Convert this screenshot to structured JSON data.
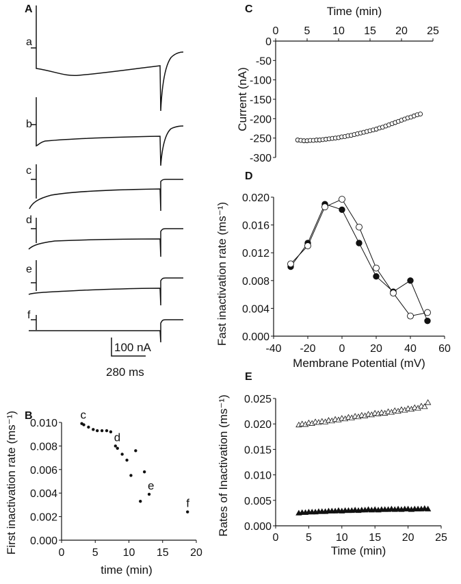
{
  "panel_labels": {
    "A": "A",
    "B": "B",
    "C": "C",
    "D": "D",
    "E": "E"
  },
  "panel_a": {
    "trace_labels": [
      "a",
      "b",
      "c",
      "d",
      "e",
      "f"
    ],
    "scale_current": "100 nA",
    "scale_time": "280 ms"
  },
  "chart_data": [
    {
      "id": "B",
      "type": "scatter",
      "xlabel": "time (min)",
      "ylabel": "First  inactivation rate (ms⁻¹)",
      "xlim": [
        0,
        20
      ],
      "ylim": [
        0,
        0.01
      ],
      "xticks": [
        "0",
        "5",
        "10",
        "15",
        "20"
      ],
      "xtick_values": [
        0,
        5,
        10,
        15,
        20
      ],
      "yticks": [
        "0.000",
        "0.002",
        "0.004",
        "0.006",
        "0.008",
        "0.010"
      ],
      "ytick_values": [
        0,
        0.002,
        0.004,
        0.006,
        0.008,
        0.01
      ],
      "series": [
        {
          "name": "first inactivation rate",
          "marker": "filled-dot",
          "x": [
            3.0,
            3.3,
            4.0,
            4.7,
            5.3,
            6.0,
            6.7,
            7.3,
            8.0,
            8.3,
            9.0,
            9.7,
            10.3,
            11.0,
            11.7,
            12.3,
            13.0,
            18.7
          ],
          "y": [
            0.0099,
            0.0098,
            0.0096,
            0.0094,
            0.0093,
            0.0093,
            0.0093,
            0.0092,
            0.008,
            0.0078,
            0.0073,
            0.0068,
            0.0055,
            0.0076,
            0.0033,
            0.0058,
            0.0039,
            0.0024
          ]
        }
      ],
      "annotations": [
        {
          "text": "c",
          "x": 3.0,
          "y": 0.0099
        },
        {
          "text": "d",
          "x": 8.0,
          "y": 0.008
        },
        {
          "text": "e",
          "x": 13.0,
          "y": 0.0039
        },
        {
          "text": "f",
          "x": 18.7,
          "y": 0.0024
        }
      ]
    },
    {
      "id": "C",
      "type": "scatter",
      "xlabel": "Time (min)",
      "ylabel": "Current (nA)",
      "xlim": [
        0,
        25
      ],
      "ylim": [
        -300,
        0
      ],
      "xticks": [
        "0",
        "5",
        "10",
        "15",
        "20",
        "25"
      ],
      "xtick_values": [
        0,
        5,
        10,
        15,
        20,
        25
      ],
      "yticks": [
        "0",
        "-50",
        "-100",
        "-150",
        "-200",
        "-250",
        "-300"
      ],
      "ytick_values": [
        0,
        -50,
        -100,
        -150,
        -200,
        -250,
        -300
      ],
      "series": [
        {
          "name": "current",
          "marker": "open-circle",
          "x": [
            3.5,
            4,
            4.5,
            5,
            5.5,
            6,
            6.5,
            7,
            7.5,
            8,
            8.5,
            9,
            9.5,
            10,
            10.5,
            11,
            11.5,
            12,
            12.5,
            13,
            13.5,
            14,
            14.5,
            15,
            15.5,
            16,
            16.5,
            17,
            17.5,
            18,
            18.5,
            19,
            19.5,
            20,
            20.5,
            21,
            21.5,
            22,
            22.5,
            23
          ],
          "y": [
            -255,
            -256,
            -257,
            -257,
            -256,
            -256,
            -255,
            -255,
            -254,
            -253,
            -252,
            -251,
            -250,
            -249,
            -247,
            -246,
            -244,
            -243,
            -241,
            -239,
            -237,
            -235,
            -233,
            -231,
            -229,
            -227,
            -224,
            -222,
            -219,
            -216,
            -213,
            -210,
            -207,
            -204,
            -201,
            -198,
            -196,
            -193,
            -190,
            -188
          ]
        }
      ]
    },
    {
      "id": "D",
      "type": "line",
      "xlabel": "Membrane Potential (mV)",
      "ylabel": "Fast inactivation rate (ms⁻¹)",
      "xlim": [
        -40,
        60
      ],
      "ylim": [
        0,
        0.02
      ],
      "xticks": [
        "-40",
        "-20",
        "0",
        "20",
        "40",
        "60"
      ],
      "xtick_values": [
        -40,
        -20,
        0,
        20,
        40,
        60
      ],
      "yticks": [
        "0.000",
        "0.004",
        "0.008",
        "0.012",
        "0.016",
        "0.020"
      ],
      "ytick_values": [
        0,
        0.004,
        0.008,
        0.012,
        0.016,
        0.02
      ],
      "x": [
        -30,
        -20,
        -10,
        0,
        10,
        20,
        30,
        40,
        50
      ],
      "series": [
        {
          "name": "filled",
          "marker": "filled-circle",
          "y": [
            0.01,
            0.0134,
            0.019,
            0.0182,
            0.0134,
            0.0086,
            0.0064,
            0.008,
            0.0022
          ]
        },
        {
          "name": "open",
          "marker": "open-circle",
          "y": [
            0.0104,
            0.013,
            0.0186,
            0.0197,
            0.0157,
            0.0098,
            0.0062,
            0.0029,
            0.0034
          ]
        }
      ]
    },
    {
      "id": "E",
      "type": "scatter",
      "xlabel": "Time (min)",
      "ylabel": "Rates of Inactivation (ms⁻¹)",
      "xlim": [
        0,
        25
      ],
      "ylim": [
        0,
        0.025
      ],
      "xticks": [
        "0",
        "5",
        "10",
        "15",
        "20",
        "25"
      ],
      "xtick_values": [
        0,
        5,
        10,
        15,
        20,
        25
      ],
      "yticks": [
        "0.000",
        "0.005",
        "0.010",
        "0.015",
        "0.020",
        "0.025"
      ],
      "ytick_values": [
        0,
        0.005,
        0.01,
        0.015,
        0.02,
        0.025
      ],
      "x": [
        3.5,
        4,
        4.5,
        5,
        5.5,
        6,
        6.5,
        7,
        7.5,
        8,
        8.5,
        9,
        9.5,
        10,
        10.5,
        11,
        11.5,
        12,
        12.5,
        13,
        13.5,
        14,
        14.5,
        15,
        15.5,
        16,
        16.5,
        17,
        17.5,
        18,
        18.5,
        19,
        19.5,
        20,
        20.5,
        21,
        21.5,
        22,
        22.5,
        23
      ],
      "series": [
        {
          "name": "open triangles",
          "marker": "open-triangle",
          "y": [
            0.0198,
            0.02,
            0.0199,
            0.0202,
            0.0201,
            0.0204,
            0.0203,
            0.0205,
            0.0204,
            0.0207,
            0.0206,
            0.0209,
            0.0208,
            0.0211,
            0.021,
            0.0213,
            0.0212,
            0.0215,
            0.0214,
            0.0217,
            0.0216,
            0.0219,
            0.0218,
            0.0221,
            0.022,
            0.0222,
            0.0221,
            0.0224,
            0.0223,
            0.0226,
            0.0225,
            0.0228,
            0.0227,
            0.023,
            0.0229,
            0.0232,
            0.0231,
            0.0235,
            0.0234,
            0.0242
          ]
        },
        {
          "name": "filled triangles",
          "marker": "filled-triangle",
          "y": [
            0.0025,
            0.0026,
            0.0026,
            0.0027,
            0.0027,
            0.0027,
            0.0028,
            0.0028,
            0.0028,
            0.0029,
            0.0029,
            0.0029,
            0.003,
            0.0029,
            0.003,
            0.003,
            0.003,
            0.0031,
            0.003,
            0.0031,
            0.0031,
            0.0032,
            0.0031,
            0.0032,
            0.0031,
            0.0032,
            0.0032,
            0.0032,
            0.0033,
            0.0032,
            0.0033,
            0.0032,
            0.0033,
            0.0033,
            0.0032,
            0.0033,
            0.0033,
            0.0033,
            0.0034,
            0.0033
          ]
        }
      ]
    }
  ]
}
